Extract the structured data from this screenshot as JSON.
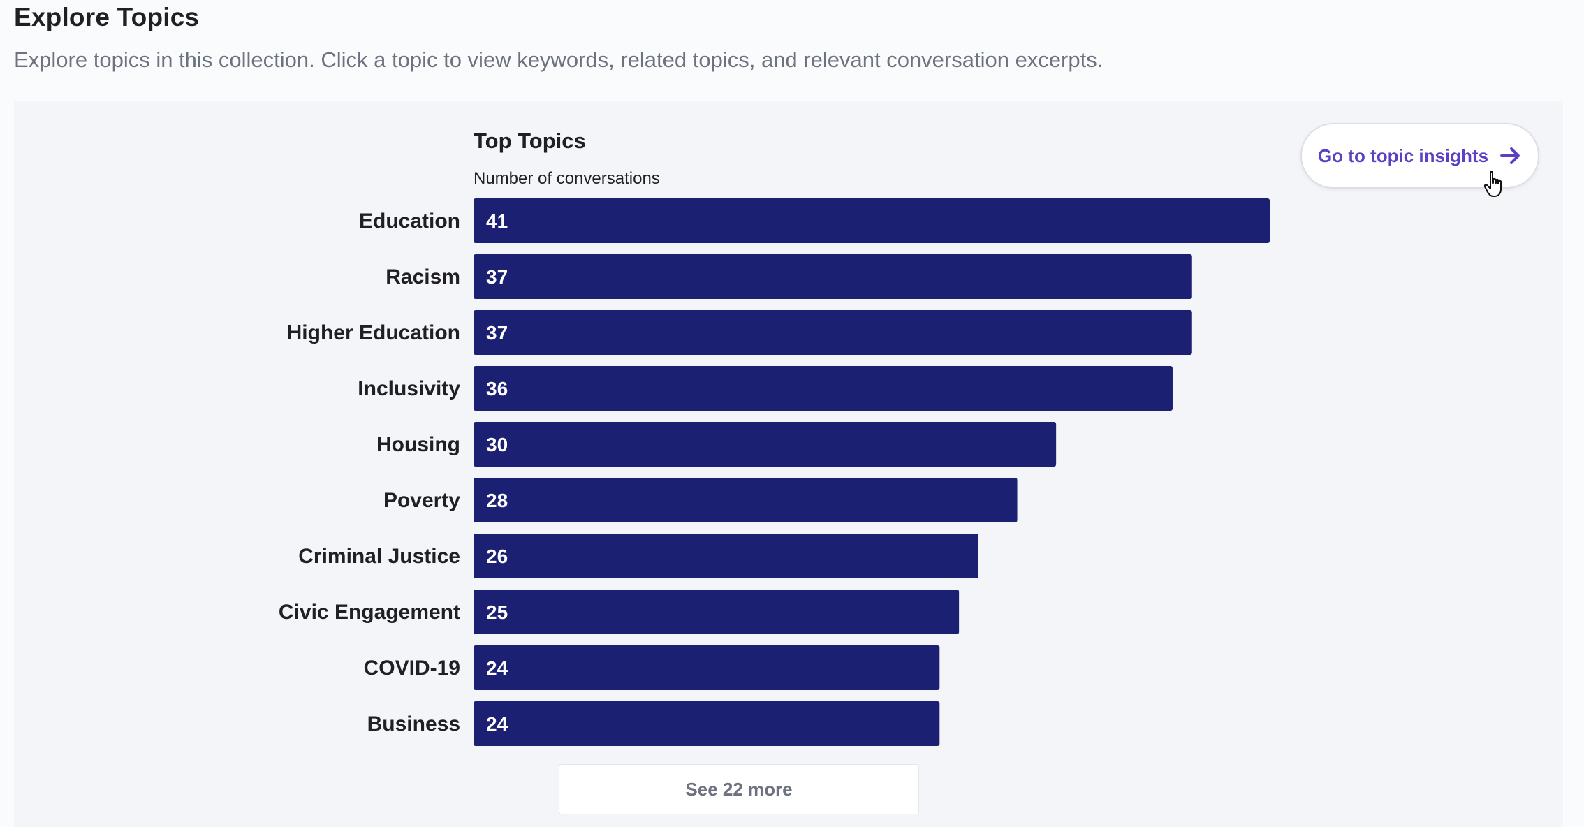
{
  "header": {
    "title": "Explore Topics",
    "subtitle": "Explore topics in this collection. Click a topic to view keywords, related topics, and relevant conversation excerpts."
  },
  "insights_button": {
    "label": "Go to topic insights",
    "icon": "arrow-right-icon"
  },
  "cursor": {
    "icon": "hand-pointer-icon"
  },
  "see_more": {
    "label": "See 22 more"
  },
  "colors": {
    "bar": "#1c2072",
    "bar_text": "#ffffff",
    "accent": "#5b3fc4",
    "panel_bg": "#f4f5f8"
  },
  "chart_data": {
    "type": "bar",
    "orientation": "horizontal",
    "title": "Top Topics",
    "xlabel": "Number of conversations",
    "ylabel": "",
    "categories": [
      "Education",
      "Racism",
      "Higher Education",
      "Inclusivity",
      "Housing",
      "Poverty",
      "Criminal Justice",
      "Civic Engagement",
      "COVID-19",
      "Business"
    ],
    "values": [
      41,
      37,
      37,
      36,
      30,
      28,
      26,
      25,
      24,
      24
    ],
    "data_labels": true,
    "grid": false,
    "legend": "none"
  }
}
